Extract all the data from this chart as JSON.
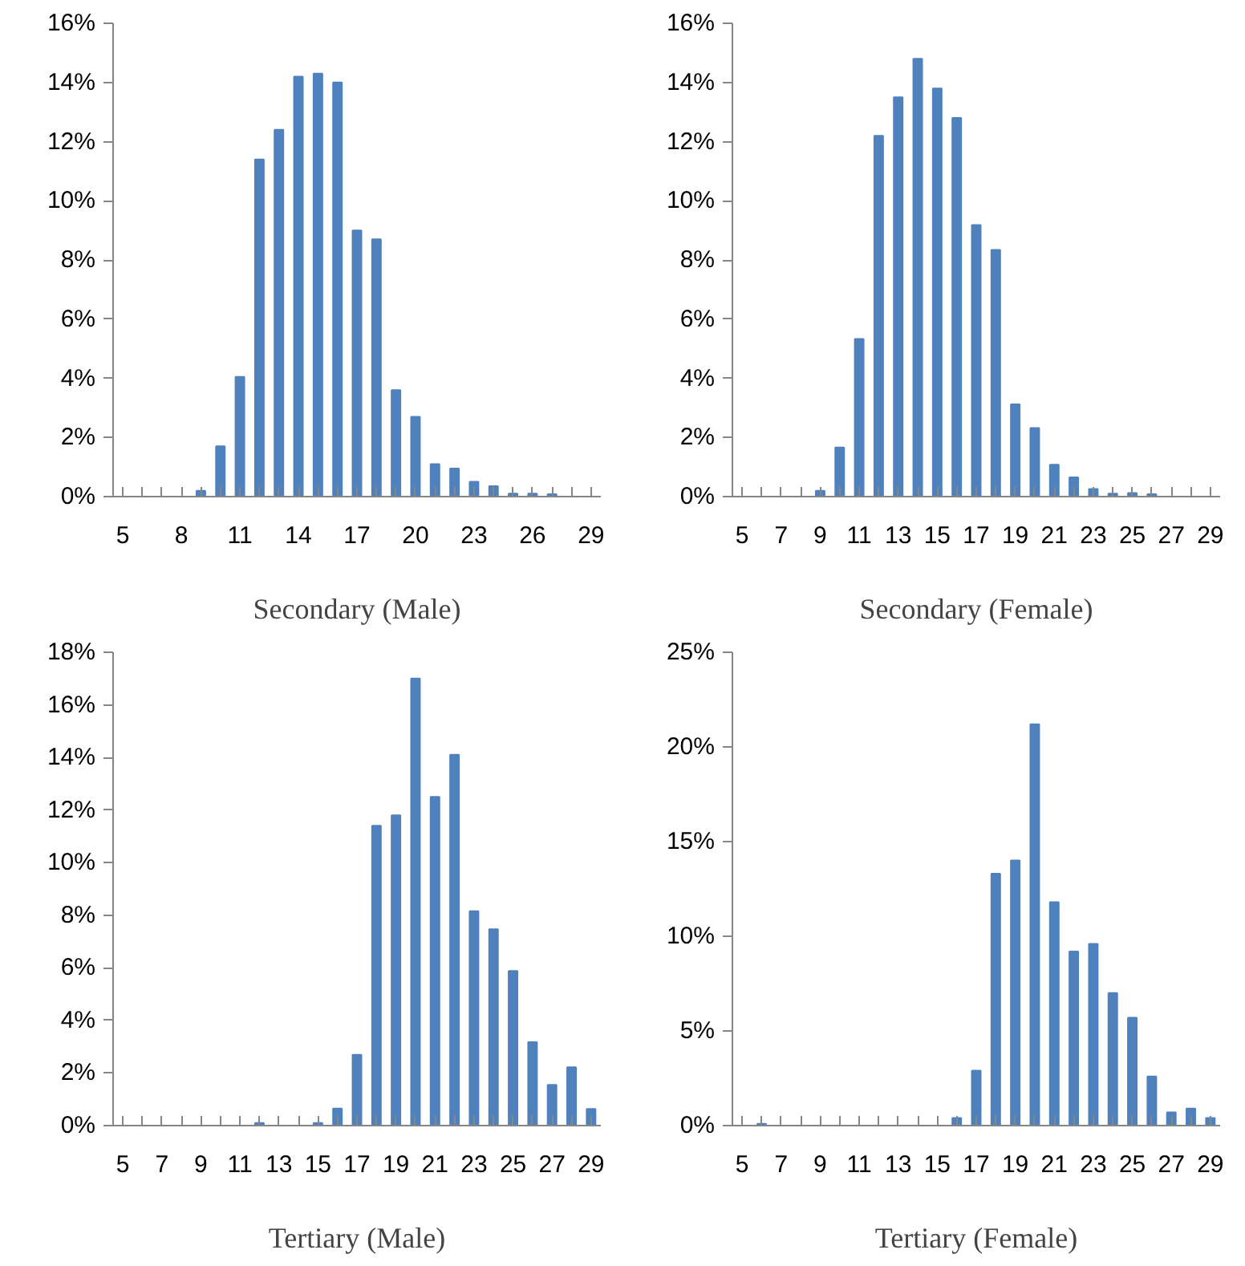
{
  "chart_data": [
    {
      "type": "bar",
      "xlabel": "Secondary (Male)",
      "color": "#4f81bd",
      "grid": false,
      "categories": [
        "5",
        null,
        null,
        "8",
        null,
        null,
        "11",
        null,
        null,
        "14",
        null,
        null,
        "17",
        null,
        null,
        "20",
        null,
        null,
        "23",
        null,
        null,
        "26",
        null,
        null,
        "29"
      ],
      "values": [
        0,
        0,
        0,
        0,
        0.2,
        1.7,
        4.05,
        11.4,
        12.4,
        14.2,
        14.3,
        14.0,
        9.0,
        8.7,
        3.6,
        2.7,
        1.1,
        0.95,
        0.5,
        0.35,
        0.1,
        0.1,
        0.08,
        0,
        0
      ],
      "ylim": [
        0,
        16
      ],
      "yticks": [
        {
          "value": 0,
          "label": "0%"
        },
        {
          "value": 2,
          "label": "2%"
        },
        {
          "value": 4,
          "label": "4%"
        },
        {
          "value": 6,
          "label": "6%"
        },
        {
          "value": 8,
          "label": "8%"
        },
        {
          "value": 10,
          "label": "10%"
        },
        {
          "value": 12,
          "label": "12%"
        },
        {
          "value": 14,
          "label": "14%"
        },
        {
          "value": 16,
          "label": "16%"
        }
      ]
    },
    {
      "type": "bar",
      "xlabel": "Secondary (Female)",
      "color": "#4f81bd",
      "grid": false,
      "categories": [
        "5",
        null,
        "7",
        null,
        "9",
        null,
        "11",
        null,
        "13",
        null,
        "15",
        null,
        "17",
        null,
        "19",
        null,
        "21",
        null,
        "23",
        null,
        "25",
        null,
        "27",
        null,
        "29"
      ],
      "values": [
        0,
        0,
        0,
        null,
        0.2,
        1.66,
        5.33,
        12.2,
        13.5,
        14.8,
        13.8,
        12.8,
        9.18,
        8.34,
        3.12,
        2.32,
        1.08,
        0.65,
        0.26,
        0.1,
        0.12,
        0.08,
        0,
        0,
        0
      ],
      "ylim": [
        0,
        16
      ],
      "yticks": [
        {
          "value": 0,
          "label": "0%"
        },
        {
          "value": 2,
          "label": "2%"
        },
        {
          "value": 4,
          "label": "4%"
        },
        {
          "value": 6,
          "label": "6%"
        },
        {
          "value": 8,
          "label": "8%"
        },
        {
          "value": 10,
          "label": "10%"
        },
        {
          "value": 12,
          "label": "12%"
        },
        {
          "value": 14,
          "label": "14%"
        },
        {
          "value": 16,
          "label": "16%"
        }
      ]
    },
    {
      "type": "bar",
      "xlabel": "Tertiary (Male)",
      "color": "#4f81bd",
      "grid": false,
      "categories": [
        "5",
        null,
        "7",
        null,
        "9",
        null,
        "11",
        null,
        "13",
        null,
        "15",
        null,
        "17",
        null,
        "19",
        null,
        "21",
        null,
        "23",
        null,
        "25",
        null,
        "27",
        null,
        "29"
      ],
      "values": [
        0,
        0,
        0,
        0,
        0,
        0,
        0,
        0.1,
        0,
        0,
        0.1,
        0.65,
        2.69,
        11.4,
        11.8,
        17.0,
        12.5,
        14.1,
        8.15,
        7.47,
        5.88,
        3.17,
        1.55,
        2.22,
        0.63
      ],
      "ylim": [
        0,
        18
      ],
      "yticks": [
        {
          "value": 0,
          "label": "0%"
        },
        {
          "value": 2,
          "label": "2%"
        },
        {
          "value": 4,
          "label": "4%"
        },
        {
          "value": 6,
          "label": "6%"
        },
        {
          "value": 8,
          "label": "8%"
        },
        {
          "value": 10,
          "label": "10%"
        },
        {
          "value": 12,
          "label": "12%"
        },
        {
          "value": 14,
          "label": "14%"
        },
        {
          "value": 16,
          "label": "16%"
        },
        {
          "value": 18,
          "label": "18%"
        }
      ]
    },
    {
      "type": "bar",
      "xlabel": "Tertiary (Female)",
      "color": "#4f81bd",
      "grid": false,
      "categories": [
        "5",
        null,
        "7",
        null,
        "9",
        null,
        "11",
        null,
        "13",
        null,
        "15",
        null,
        "17",
        null,
        "19",
        null,
        "21",
        null,
        "23",
        null,
        "25",
        null,
        "27",
        null,
        "29"
      ],
      "values": [
        0,
        0.1,
        0,
        0,
        0,
        0,
        0,
        0,
        0,
        0,
        0,
        0.4,
        2.9,
        13.3,
        14.0,
        21.2,
        11.8,
        9.2,
        9.6,
        7.0,
        5.7,
        2.6,
        0.7,
        0.9,
        0.4
      ],
      "ylim": [
        0,
        25
      ],
      "yticks": [
        {
          "value": 0,
          "label": "0%"
        },
        {
          "value": 5,
          "label": "5%"
        },
        {
          "value": 10,
          "label": "10%"
        },
        {
          "value": 15,
          "label": "15%"
        },
        {
          "value": 20,
          "label": "20%"
        },
        {
          "value": 25,
          "label": "25%"
        }
      ]
    }
  ]
}
